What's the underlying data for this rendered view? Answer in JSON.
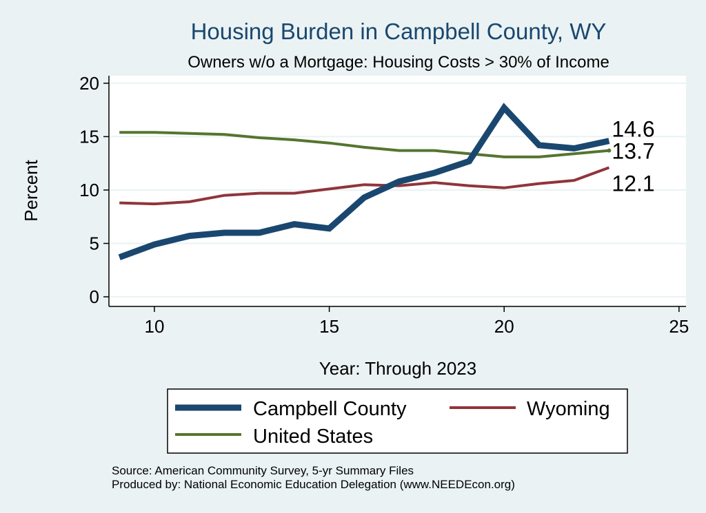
{
  "chart_data": {
    "type": "line",
    "title": "Housing Burden in Campbell County, WY",
    "subtitle": "Owners w/o a Mortgage: Housing Costs > 30% of Income",
    "xlabel": "Year: Through 2023",
    "ylabel": "Percent",
    "xlim": [
      8.7,
      25.2
    ],
    "ylim": [
      -0.9,
      20.7
    ],
    "xticks": [
      10,
      15,
      20,
      25
    ],
    "yticks": [
      0,
      5,
      10,
      15,
      20
    ],
    "grid": true,
    "legend_position": "bottom",
    "x": [
      9,
      10,
      11,
      12,
      13,
      14,
      15,
      16,
      17,
      18,
      19,
      20,
      21,
      22,
      23
    ],
    "series": [
      {
        "name": "Campbell County",
        "color": "#1a476f",
        "values": [
          3.7,
          4.9,
          5.7,
          6.0,
          6.0,
          6.8,
          6.4,
          9.3,
          10.8,
          11.6,
          12.7,
          17.7,
          14.2,
          13.9,
          14.6
        ],
        "end_label": "14.6"
      },
      {
        "name": "Wyoming",
        "color": "#90353b",
        "values": [
          8.8,
          8.7,
          8.9,
          9.5,
          9.7,
          9.7,
          10.1,
          10.5,
          10.4,
          10.7,
          10.4,
          10.2,
          10.6,
          10.9,
          12.1
        ],
        "end_label": "12.1"
      },
      {
        "name": "United States",
        "color": "#55752f",
        "values": [
          15.4,
          15.4,
          15.3,
          15.2,
          14.9,
          14.7,
          14.4,
          14.0,
          13.7,
          13.7,
          13.4,
          13.1,
          13.1,
          13.4,
          13.7
        ],
        "end_label": "13.7"
      }
    ]
  },
  "source": {
    "line1": "Source: American Community Survey, 5-yr Summary Files",
    "line2": "Produced by: National Economic Education Delegation (www.NEEDEcon.org)"
  },
  "colors": {
    "background": "#eaf2f3",
    "plot_background": "#ffffff",
    "title": "#1a476f",
    "grid": "#eaf2f3"
  }
}
